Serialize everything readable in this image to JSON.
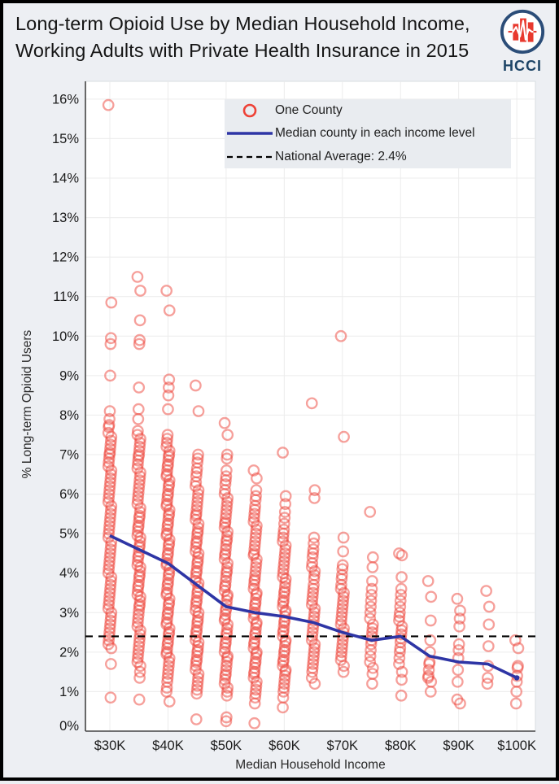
{
  "header": {
    "title_line1": "Long-term Opioid Use by Median Household Income,",
    "title_line2": "Working Adults with Private Health Insurance in 2015",
    "logo_text": "HCCI"
  },
  "legend": {
    "items": [
      {
        "marker": "circle",
        "label": "One County"
      },
      {
        "marker": "line",
        "label": "Median county in each income level"
      },
      {
        "marker": "dashed",
        "label": "National Average: 2.4%"
      }
    ]
  },
  "chart_data": {
    "type": "scatter",
    "title": "Long-term Opioid Use by Median Household Income, Working Adults with Private Health Insurance in 2015",
    "xlabel": "Median Household Income",
    "ylabel": "% Long-term Opioid Users",
    "xlim": [
      25.8,
      103.2
    ],
    "ylim": [
      0,
      16.45
    ],
    "grid": true,
    "legend_position": "top-center",
    "x_ticks": [
      {
        "value": 30,
        "label": "$30K"
      },
      {
        "value": 40,
        "label": "$40K"
      },
      {
        "value": 50,
        "label": "$50K"
      },
      {
        "value": 60,
        "label": "$60K"
      },
      {
        "value": 70,
        "label": "$70K"
      },
      {
        "value": 80,
        "label": "$80K"
      },
      {
        "value": 90,
        "label": "$90K"
      },
      {
        "value": 100,
        "label": "$100K"
      }
    ],
    "y_ticks": [
      {
        "value": 0,
        "label": "0%"
      },
      {
        "value": 1,
        "label": "1%"
      },
      {
        "value": 2,
        "label": "2%"
      },
      {
        "value": 3,
        "label": "3%"
      },
      {
        "value": 4,
        "label": "4%"
      },
      {
        "value": 5,
        "label": "5%"
      },
      {
        "value": 6,
        "label": "6%"
      },
      {
        "value": 7,
        "label": "7%"
      },
      {
        "value": 8,
        "label": "8%"
      },
      {
        "value": 9,
        "label": "9%"
      },
      {
        "value": 10,
        "label": "10%"
      },
      {
        "value": 11,
        "label": "11%"
      },
      {
        "value": 12,
        "label": "12%"
      },
      {
        "value": 13,
        "label": "13%"
      },
      {
        "value": 14,
        "label": "14%"
      },
      {
        "value": 15,
        "label": "15%"
      },
      {
        "value": 16,
        "label": "16%"
      }
    ],
    "national_average": {
      "value": 2.4,
      "label": "National Average: 2.4%"
    },
    "median_line": {
      "name": "Median county in each income level",
      "x": [
        30,
        35,
        40,
        45,
        50,
        55,
        60,
        65,
        70,
        75,
        80,
        85,
        90,
        95,
        100
      ],
      "y": [
        4.95,
        4.6,
        4.25,
        3.7,
        3.15,
        3.0,
        2.9,
        2.75,
        2.5,
        2.3,
        2.4,
        1.9,
        1.75,
        1.7,
        1.35
      ]
    },
    "counties": {
      "name": "One County",
      "columns": [
        {
          "income_k": 30,
          "values": [
            15.85,
            10.85,
            9.95,
            9.8,
            9.0,
            8.1,
            7.9,
            7.75,
            7.7,
            7.55,
            7.45,
            7.35,
            7.25,
            7.15,
            7.05,
            7.0,
            6.9,
            6.8,
            6.7,
            6.6,
            6.5,
            6.4,
            6.3,
            6.2,
            6.1,
            6.0,
            5.9,
            5.8,
            5.7,
            5.6,
            5.5,
            5.4,
            5.3,
            5.2,
            5.1,
            5.0,
            4.9,
            4.8,
            4.7,
            4.6,
            4.5,
            4.4,
            4.3,
            4.2,
            4.1,
            4.0,
            3.9,
            3.8,
            3.7,
            3.6,
            3.5,
            3.4,
            3.3,
            3.2,
            3.1,
            3.0,
            2.9,
            2.8,
            2.7,
            2.6,
            2.5,
            2.4,
            2.3,
            2.2,
            2.1,
            1.7,
            0.85
          ]
        },
        {
          "income_k": 35,
          "values": [
            11.5,
            11.15,
            10.4,
            9.9,
            9.8,
            8.7,
            8.15,
            7.9,
            7.6,
            7.5,
            7.4,
            7.3,
            7.2,
            7.1,
            7.0,
            6.95,
            6.85,
            6.75,
            6.65,
            6.55,
            6.45,
            6.35,
            6.25,
            6.15,
            6.05,
            5.95,
            5.85,
            5.75,
            5.65,
            5.55,
            5.45,
            5.4,
            5.3,
            5.2,
            5.15,
            5.05,
            4.95,
            4.9,
            4.8,
            4.7,
            4.65,
            4.55,
            4.45,
            4.4,
            4.3,
            4.2,
            4.15,
            4.05,
            3.95,
            3.9,
            3.8,
            3.7,
            3.65,
            3.55,
            3.45,
            3.4,
            3.3,
            3.2,
            3.15,
            3.05,
            2.95,
            2.85,
            2.75,
            2.65,
            2.55,
            2.45,
            2.35,
            2.25,
            2.15,
            2.05,
            1.95,
            1.85,
            1.75,
            1.65,
            1.5,
            1.35,
            0.8
          ]
        },
        {
          "income_k": 40,
          "values": [
            11.15,
            10.65,
            8.9,
            8.7,
            8.5,
            8.15,
            7.5,
            7.4,
            7.3,
            7.2,
            7.1,
            7.0,
            6.95,
            6.85,
            6.75,
            6.7,
            6.6,
            6.5,
            6.45,
            6.35,
            6.25,
            6.2,
            6.1,
            6.0,
            5.95,
            5.85,
            5.75,
            5.7,
            5.6,
            5.5,
            5.45,
            5.35,
            5.25,
            5.2,
            5.1,
            5.0,
            4.95,
            4.85,
            4.75,
            4.7,
            4.6,
            4.5,
            4.45,
            4.35,
            4.25,
            4.2,
            4.1,
            4.0,
            3.95,
            3.85,
            3.75,
            3.7,
            3.6,
            3.5,
            3.45,
            3.35,
            3.25,
            3.2,
            3.1,
            3.0,
            2.95,
            2.85,
            2.75,
            2.7,
            2.6,
            2.5,
            2.45,
            2.35,
            2.25,
            2.2,
            2.1,
            2.0,
            1.95,
            1.85,
            1.75,
            1.65,
            1.55,
            1.45,
            1.35,
            1.25,
            1.1,
            1.0,
            0.75
          ]
        },
        {
          "income_k": 45,
          "values": [
            8.75,
            8.1,
            7.0,
            6.9,
            6.8,
            6.65,
            6.55,
            6.45,
            6.3,
            6.2,
            6.1,
            6.0,
            5.9,
            5.8,
            5.7,
            5.6,
            5.5,
            5.45,
            5.35,
            5.25,
            5.15,
            5.05,
            5.0,
            4.9,
            4.8,
            4.75,
            4.65,
            4.55,
            4.5,
            4.4,
            4.3,
            4.25,
            4.15,
            4.05,
            4.0,
            3.9,
            3.8,
            3.75,
            3.65,
            3.55,
            3.5,
            3.4,
            3.3,
            3.25,
            3.15,
            3.05,
            3.0,
            2.9,
            2.8,
            2.75,
            2.65,
            2.55,
            2.5,
            2.4,
            2.3,
            2.25,
            2.15,
            2.05,
            2.0,
            1.9,
            1.8,
            1.75,
            1.65,
            1.55,
            1.45,
            1.35,
            1.25,
            1.15,
            1.05,
            0.95,
            0.3
          ]
        },
        {
          "income_k": 50,
          "values": [
            7.8,
            7.5,
            7.0,
            6.9,
            6.6,
            6.45,
            6.35,
            6.25,
            6.1,
            6.0,
            5.9,
            5.8,
            5.7,
            5.6,
            5.5,
            5.4,
            5.3,
            5.25,
            5.15,
            5.05,
            4.95,
            4.85,
            4.8,
            4.7,
            4.6,
            4.5,
            4.45,
            4.35,
            4.25,
            4.15,
            4.05,
            4.0,
            3.9,
            3.8,
            3.7,
            3.65,
            3.55,
            3.45,
            3.4,
            3.3,
            3.2,
            3.1,
            3.05,
            2.95,
            2.85,
            2.8,
            2.7,
            2.6,
            2.5,
            2.45,
            2.35,
            2.25,
            2.2,
            2.1,
            2.0,
            1.9,
            1.85,
            1.75,
            1.65,
            1.55,
            1.45,
            1.4,
            1.3,
            1.2,
            1.1,
            1.0,
            0.9,
            0.35,
            0.25
          ]
        },
        {
          "income_k": 55,
          "values": [
            6.6,
            6.4,
            6.1,
            5.95,
            5.85,
            5.7,
            5.6,
            5.5,
            5.4,
            5.3,
            5.2,
            5.1,
            5.0,
            4.9,
            4.8,
            4.7,
            4.6,
            4.5,
            4.45,
            4.35,
            4.25,
            4.15,
            4.05,
            3.95,
            3.85,
            3.8,
            3.7,
            3.6,
            3.5,
            3.45,
            3.35,
            3.25,
            3.2,
            3.1,
            3.0,
            2.95,
            2.85,
            2.75,
            2.7,
            2.6,
            2.5,
            2.45,
            2.35,
            2.25,
            2.2,
            2.1,
            2.0,
            1.95,
            1.85,
            1.75,
            1.7,
            1.6,
            1.5,
            1.45,
            1.35,
            1.25,
            1.15,
            1.05,
            0.95,
            0.85,
            0.7,
            0.2
          ]
        },
        {
          "income_k": 60,
          "values": [
            7.05,
            5.95,
            5.75,
            5.55,
            5.4,
            5.25,
            5.1,
            5.0,
            4.9,
            4.8,
            4.7,
            4.6,
            4.5,
            4.4,
            4.3,
            4.2,
            4.1,
            4.0,
            3.9,
            3.85,
            3.75,
            3.65,
            3.55,
            3.5,
            3.4,
            3.3,
            3.25,
            3.15,
            3.05,
            3.0,
            2.9,
            2.8,
            2.75,
            2.65,
            2.55,
            2.5,
            2.4,
            2.3,
            2.25,
            2.15,
            2.05,
            2.0,
            1.9,
            1.8,
            1.75,
            1.65,
            1.55,
            1.5,
            1.4,
            1.3,
            1.2,
            1.1,
            1.0,
            0.85,
            0.6
          ]
        },
        {
          "income_k": 65,
          "values": [
            8.3,
            6.1,
            5.9,
            4.9,
            4.75,
            4.6,
            4.5,
            4.4,
            4.25,
            4.15,
            4.05,
            3.95,
            3.85,
            3.7,
            3.6,
            3.5,
            3.4,
            3.3,
            3.2,
            3.1,
            3.0,
            2.9,
            2.8,
            2.7,
            2.6,
            2.5,
            2.4,
            2.3,
            2.2,
            2.1,
            2.0,
            1.9,
            1.8,
            1.7,
            1.6,
            1.5,
            1.35,
            1.2
          ]
        },
        {
          "income_k": 70,
          "values": [
            10.0,
            7.45,
            4.9,
            4.55,
            4.2,
            4.1,
            3.95,
            3.85,
            3.7,
            3.6,
            3.5,
            3.4,
            3.3,
            3.2,
            3.1,
            3.0,
            2.9,
            2.8,
            2.7,
            2.6,
            2.5,
            2.4,
            2.3,
            2.2,
            2.1,
            2.0,
            1.9,
            1.8,
            1.65,
            1.5
          ]
        },
        {
          "income_k": 75,
          "values": [
            5.55,
            4.4,
            4.15,
            3.8,
            3.6,
            3.45,
            3.3,
            3.15,
            3.0,
            2.85,
            2.7,
            2.6,
            2.5,
            2.4,
            2.3,
            2.2,
            2.05,
            1.9,
            1.75,
            1.6,
            1.45,
            1.2
          ]
        },
        {
          "income_k": 80,
          "values": [
            4.5,
            4.45,
            3.9,
            3.6,
            3.45,
            3.3,
            3.15,
            3.0,
            2.9,
            2.8,
            2.65,
            2.55,
            2.45,
            2.35,
            2.25,
            2.1,
            2.0,
            1.85,
            1.7,
            1.5,
            1.3,
            0.9
          ]
        },
        {
          "income_k": 85,
          "values": [
            3.8,
            3.4,
            2.8,
            2.3,
            2.0,
            1.75,
            1.7,
            1.55,
            1.4,
            1.35,
            1.25,
            1.0
          ]
        },
        {
          "income_k": 90,
          "values": [
            3.35,
            3.05,
            2.85,
            2.65,
            2.2,
            2.05,
            1.85,
            1.55,
            1.25,
            0.8,
            0.7
          ]
        },
        {
          "income_k": 95,
          "values": [
            3.55,
            3.15,
            2.7,
            2.15,
            1.65,
            1.35,
            1.2
          ]
        },
        {
          "income_k": 100,
          "values": [
            2.3,
            2.1,
            1.65,
            1.6,
            1.4,
            1.25,
            1.0,
            0.7
          ]
        }
      ]
    },
    "colors": {
      "point": "#ee4237",
      "median_line": "#2e35a5",
      "national_average": "#000000",
      "grid": "#ececec",
      "axis": "#444444",
      "plot_bg": "#ffffff",
      "page_bg": "#edeff3",
      "legend_bg": "#e9ecf0"
    }
  }
}
